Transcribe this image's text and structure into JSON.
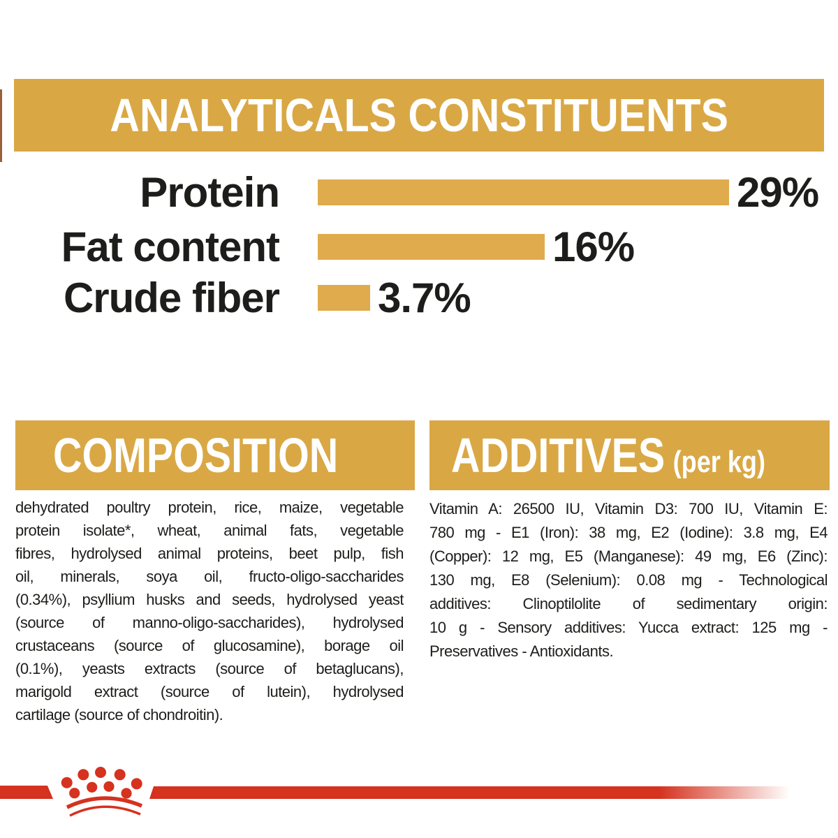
{
  "colors": {
    "gold": "#D9A845",
    "bar_gold": "#DFAB4C",
    "red": "#D5321F",
    "text_dark": "#1D1D1B",
    "white": "#FFFFFF"
  },
  "header": {
    "title": "ANALYTICALS CONSTITUENTS"
  },
  "chart_data": {
    "type": "bar",
    "orientation": "horizontal",
    "title": "ANALYTICALS CONSTITUENTS",
    "categories": [
      "Protein",
      "Fat content",
      "Crude fiber"
    ],
    "values": [
      29,
      16,
      3.7
    ],
    "value_labels": [
      "29%",
      "16%",
      "3.7%"
    ],
    "unit": "%",
    "xlim": [
      0,
      29
    ],
    "bar_color": "#DFAB4C",
    "grid": false,
    "legend": false
  },
  "composition": {
    "title": "COMPOSITION",
    "lines": [
      "dehydrated poultry protein, rice, maize, vegetable",
      "protein isolate*, wheat, animal fats, vegetable",
      "fibres, hydrolysed animal proteins, beet pulp, fish",
      "oil, minerals, soya oil, fructo-oligo-saccharides",
      "(0.34%), psyllium husks and seeds, hydrolysed yeast",
      "(source of manno-oligo-saccharides), hydrolysed",
      "crustaceans (source of glucosamine), borage oil",
      "(0.1%), yeasts extracts (source of betaglucans),",
      "marigold extract (source of lutein), hydrolysed",
      "cartilage (source of chondroitin)."
    ]
  },
  "additives": {
    "title": "ADDITIVES",
    "per_kg_label": "(per kg)",
    "lines": [
      "Vitamin A: 26500 IU, Vitamin D3: 700 IU, Vitamin E:",
      "780 mg - E1 (Iron): 38 mg, E2 (Iodine): 3.8 mg, E4",
      "(Copper): 12 mg, E5 (Manganese): 49 mg, E6 (Zinc):",
      "130 mg, E8 (Selenium): 0.08 mg - Technological",
      "additives: Clinoptilolite of sedimentary origin:",
      "10 g - Sensory additives: Yucca extract: 125 mg -",
      "Preservatives - Antioxidants."
    ]
  },
  "footer": {
    "logo_icon": "royal-canin-crown-logo",
    "stripe_color": "#D5321F"
  }
}
